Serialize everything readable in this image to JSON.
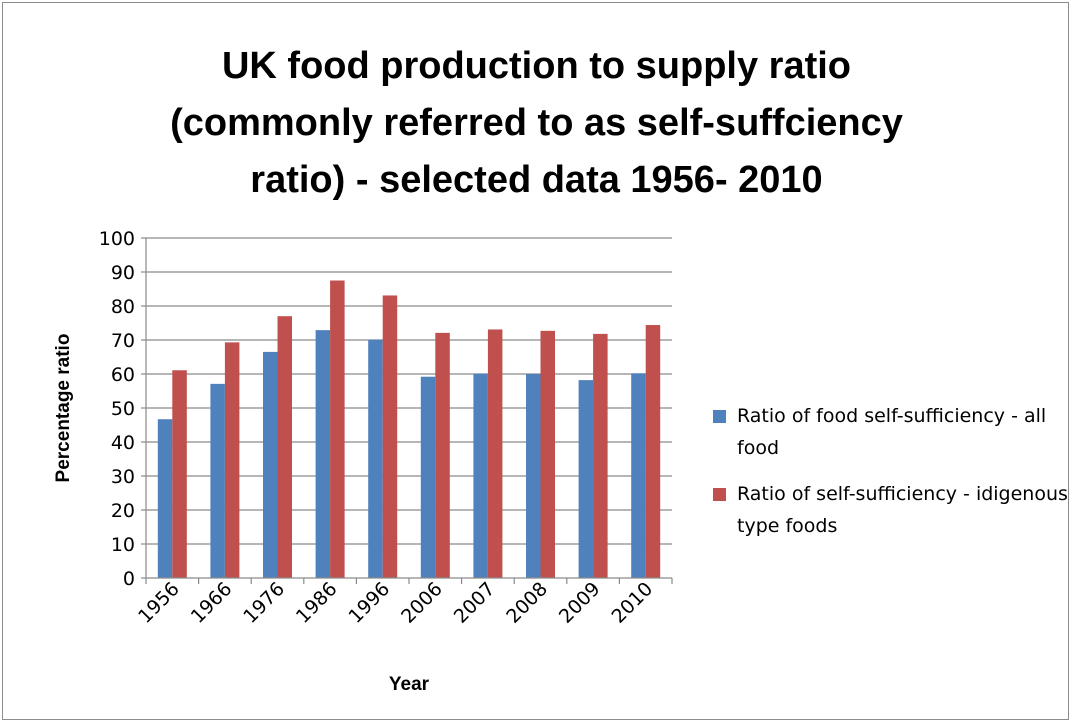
{
  "chart_data": {
    "type": "bar",
    "title_lines": [
      "UK food production to supply ratio",
      "(commonly referred to as self-suffciency",
      "ratio) - selected data 1956- 2010"
    ],
    "xlabel": "Year",
    "ylabel": "Percentage ratio",
    "categories": [
      "1956",
      "1966",
      "1976",
      "1986",
      "1996",
      "2006",
      "2007",
      "2008",
      "2009",
      "2010"
    ],
    "series": [
      {
        "name": "Ratio of food self-sufficiency - all food",
        "color": "#4f81bd",
        "values": [
          46.7,
          57.1,
          66.5,
          72.9,
          70.1,
          59.2,
          60.1,
          60.0,
          58.2,
          60.2
        ]
      },
      {
        "name": "Ratio of self-sufficiency - idigenous type foods",
        "color": "#c0504d",
        "values": [
          61.1,
          69.3,
          77.0,
          87.5,
          83.1,
          72.1,
          73.1,
          72.7,
          71.8,
          74.4
        ]
      }
    ],
    "ylim": [
      0,
      100
    ],
    "yticks": [
      0,
      10,
      20,
      30,
      40,
      50,
      60,
      70,
      80,
      90,
      100
    ],
    "grid": true,
    "legend_position": "right"
  }
}
